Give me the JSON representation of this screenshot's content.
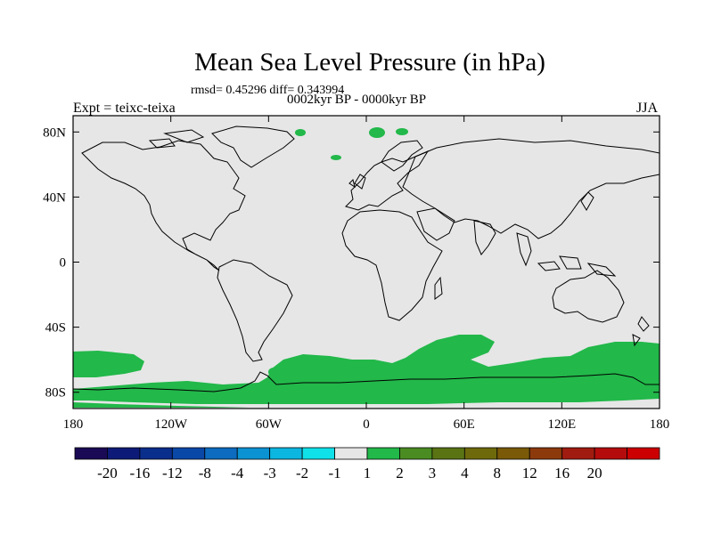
{
  "title": "Mean Sea Level Pressure (in hPa)",
  "stats": "rmsd= 0.45296 diff= 0.343994",
  "period": "0002kyr BP - 0000kyr BP",
  "experiment": "Expt = teixc-teixa",
  "season": "JJA",
  "axes": {
    "lon_ticks": [
      {
        "value": -180,
        "label": "180"
      },
      {
        "value": -120,
        "label": "120W"
      },
      {
        "value": -60,
        "label": "60W"
      },
      {
        "value": 0,
        "label": "0"
      },
      {
        "value": 60,
        "label": "60E"
      },
      {
        "value": 120,
        "label": "120E"
      },
      {
        "value": 180,
        "label": "180"
      }
    ],
    "lat_ticks": [
      {
        "value": 80,
        "label": "80N"
      },
      {
        "value": 40,
        "label": "40N"
      },
      {
        "value": 0,
        "label": "0"
      },
      {
        "value": -40,
        "label": "40S"
      },
      {
        "value": -80,
        "label": "80S"
      }
    ],
    "lon_range": [
      -180,
      180
    ],
    "lat_range": [
      -90,
      90
    ]
  },
  "colorbar": {
    "colors": [
      "#1a0a55",
      "#0d1a78",
      "#0a2e8c",
      "#0a48a8",
      "#0d6cbf",
      "#0a92d2",
      "#0bb6e0",
      "#10e0e8",
      "#e6e6e6",
      "#22b84a",
      "#4a8c22",
      "#5a7414",
      "#6e6a0c",
      "#7a5a08",
      "#8c3a0c",
      "#a01c10",
      "#b40c0c",
      "#cc0000"
    ],
    "labels": [
      "-20",
      "-16",
      "-12",
      "-8",
      "-4",
      "-3",
      "-2",
      "-1",
      "1",
      "2",
      "3",
      "4",
      "8",
      "12",
      "16",
      "20"
    ]
  },
  "colors": {
    "background_field": "#e6e6e6",
    "positive_anomaly": "#22b84a",
    "coastline": "#000000"
  }
}
